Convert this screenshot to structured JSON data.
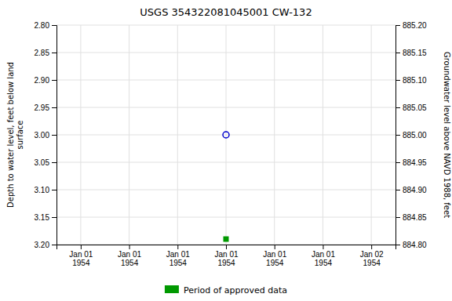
{
  "chart_data": {
    "type": "scatter",
    "title": "USGS 354322081045001 CW-132",
    "ylabel": "Depth to water level, feet below land\nsurface",
    "y2label": "Groundwater level above NAVD 1988, feet",
    "categories": [
      "Jan 01\n1954",
      "Jan 01\n1954",
      "Jan 01\n1954",
      "Jan 01\n1954",
      "Jan 01\n1954",
      "Jan 01\n1954",
      "Jan 02\n1954"
    ],
    "series": [
      {
        "color": "#0000cc",
        "marker": "circle",
        "values": [
          null,
          null,
          null,
          3.0,
          null,
          null,
          null
        ]
      },
      {
        "name": "Period of approved data",
        "color": "#009900",
        "marker": "square",
        "values": [
          null,
          null,
          null,
          3.19,
          null,
          null,
          null
        ]
      }
    ],
    "ylim": [
      3.2,
      2.8
    ],
    "yticks": [
      {
        "value": 2.8,
        "label": "2.80"
      },
      {
        "value": 2.85,
        "label": "2.85"
      },
      {
        "value": 2.9,
        "label": "2.90"
      },
      {
        "value": 2.95,
        "label": "2.95"
      },
      {
        "value": 3.0,
        "label": "3.00"
      },
      {
        "value": 3.05,
        "label": "3.05"
      },
      {
        "value": 3.1,
        "label": "3.10"
      },
      {
        "value": 3.15,
        "label": "3.15"
      },
      {
        "value": 3.2,
        "label": "3.20"
      }
    ],
    "y2lim": [
      884.8,
      885.2
    ],
    "y2ticks": [
      {
        "value": 884.8,
        "label": "884.80"
      },
      {
        "value": 884.85,
        "label": "884.85"
      },
      {
        "value": 884.9,
        "label": "884.90"
      },
      {
        "value": 884.95,
        "label": "884.95"
      },
      {
        "value": 885.0,
        "label": "885.00"
      },
      {
        "value": 885.05,
        "label": "885.05"
      },
      {
        "value": 885.1,
        "label": "885.10"
      },
      {
        "value": 885.15,
        "label": "885.15"
      },
      {
        "value": 885.2,
        "label": "885.20"
      }
    ],
    "grid": true,
    "legend": "bottom"
  }
}
